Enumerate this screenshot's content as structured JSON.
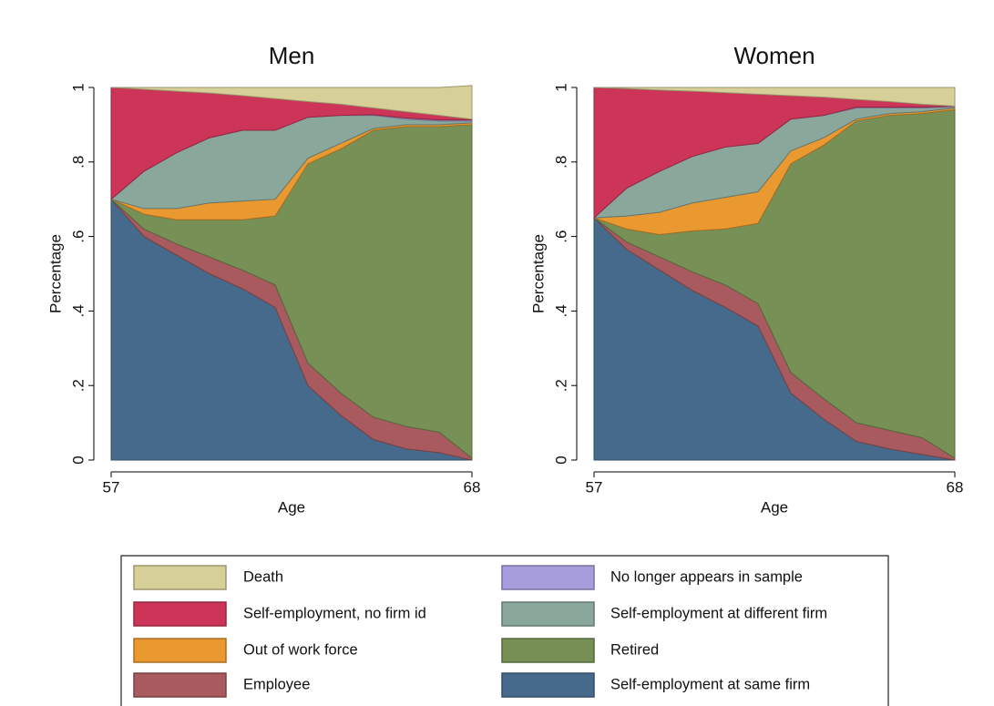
{
  "chart_data": [
    {
      "type": "stacked_area",
      "title": "Men",
      "x_label": "Age",
      "y_label": "Percentage",
      "x": [
        57,
        58,
        59,
        60,
        61,
        62,
        63,
        64,
        65,
        66,
        67,
        68
      ],
      "xlim": [
        57,
        68
      ],
      "xticks": [
        57,
        68
      ],
      "ylim": [
        0,
        1
      ],
      "yticks": [
        0,
        {
          "value": 0.2,
          "label": ".2"
        },
        {
          "value": 0.4,
          "label": ".4"
        },
        {
          "value": 0.6,
          "label": ".6"
        },
        {
          "value": 0.8,
          "label": ".8"
        },
        1
      ],
      "grid": true,
      "series": [
        {
          "name": "Self-employment at same firm",
          "color": "#456a8c",
          "values": [
            0.7,
            0.6,
            0.55,
            0.5,
            0.46,
            0.41,
            0.2,
            0.12,
            0.055,
            0.03,
            0.02,
            0.0
          ]
        },
        {
          "name": "Employee",
          "color": "#a85a5e",
          "values": [
            0,
            0.02,
            0.03,
            0.045,
            0.05,
            0.06,
            0.06,
            0.06,
            0.06,
            0.06,
            0.055,
            0.005
          ]
        },
        {
          "name": "Retired",
          "color": "#769055",
          "values": [
            0,
            0.04,
            0.065,
            0.1,
            0.135,
            0.185,
            0.535,
            0.655,
            0.77,
            0.805,
            0.82,
            0.895
          ]
        },
        {
          "name": "Out of work force",
          "color": "#e9992f",
          "values": [
            0,
            0.015,
            0.03,
            0.045,
            0.05,
            0.045,
            0.015,
            0.015,
            0.005,
            0.005,
            0.005,
            0.005
          ]
        },
        {
          "name": "Self-employment at different firm",
          "color": "#8aa79b",
          "values": [
            0,
            0.1,
            0.15,
            0.175,
            0.19,
            0.185,
            0.11,
            0.075,
            0.035,
            0.015,
            0.01,
            0.005
          ]
        },
        {
          "name": "No longer appears in sample",
          "color": "#a89ddc",
          "values": [
            0,
            0,
            0,
            0,
            0,
            0,
            0,
            0,
            0.002,
            0.003,
            0.003,
            0.003
          ]
        },
        {
          "name": "Self-employment, no firm id",
          "color": "#cc3557",
          "values": [
            0.3,
            0.22,
            0.165,
            0.12,
            0.093,
            0.085,
            0.042,
            0.03,
            0.018,
            0.017,
            0.012,
            0.002
          ]
        },
        {
          "name": "Death",
          "color": "#d7cf98",
          "values": [
            0,
            0.005,
            0.01,
            0.015,
            0.022,
            0.03,
            0.038,
            0.045,
            0.055,
            0.065,
            0.075,
            0.09
          ]
        }
      ]
    },
    {
      "type": "stacked_area",
      "title": "Women",
      "x_label": "Age",
      "y_label": "Percentage",
      "x": [
        57,
        58,
        59,
        60,
        61,
        62,
        63,
        64,
        65,
        66,
        67,
        68
      ],
      "xlim": [
        57,
        68
      ],
      "xticks": [
        57,
        68
      ],
      "ylim": [
        0,
        1
      ],
      "yticks": [
        0,
        {
          "value": 0.2,
          "label": ".2"
        },
        {
          "value": 0.4,
          "label": ".4"
        },
        {
          "value": 0.6,
          "label": ".6"
        },
        {
          "value": 0.8,
          "label": ".8"
        },
        1
      ],
      "grid": true,
      "series": [
        {
          "name": "Self-employment at same firm",
          "color": "#456a8c",
          "values": [
            0.65,
            0.565,
            0.51,
            0.455,
            0.41,
            0.36,
            0.18,
            0.11,
            0.05,
            0.03,
            0.015,
            0.0
          ]
        },
        {
          "name": "Employee",
          "color": "#a85a5e",
          "values": [
            0,
            0.02,
            0.035,
            0.05,
            0.06,
            0.06,
            0.055,
            0.055,
            0.05,
            0.05,
            0.045,
            0.005
          ]
        },
        {
          "name": "Retired",
          "color": "#769055",
          "values": [
            0,
            0.035,
            0.06,
            0.11,
            0.15,
            0.215,
            0.56,
            0.68,
            0.81,
            0.845,
            0.87,
            0.935
          ]
        },
        {
          "name": "Out of work force",
          "color": "#e9992f",
          "values": [
            0,
            0.035,
            0.06,
            0.075,
            0.085,
            0.085,
            0.035,
            0.02,
            0.005,
            0.005,
            0.005,
            0.005
          ]
        },
        {
          "name": "Self-employment at different firm",
          "color": "#8aa79b",
          "values": [
            0,
            0.075,
            0.11,
            0.125,
            0.135,
            0.13,
            0.085,
            0.06,
            0.03,
            0.015,
            0.01,
            0.003
          ]
        },
        {
          "name": "No longer appears in sample",
          "color": "#a89ddc",
          "values": [
            0,
            0,
            0,
            0,
            0,
            0,
            0,
            0,
            0.002,
            0.002,
            0.002,
            0.002
          ]
        },
        {
          "name": "Self-employment, no firm id",
          "color": "#cc3557",
          "values": [
            0.35,
            0.267,
            0.218,
            0.175,
            0.146,
            0.132,
            0.063,
            0.049,
            0.021,
            0.015,
            0.008,
            0.0
          ]
        },
        {
          "name": "Death",
          "color": "#d7cf98",
          "values": [
            0,
            0.003,
            0.007,
            0.01,
            0.014,
            0.018,
            0.022,
            0.026,
            0.032,
            0.038,
            0.045,
            0.05
          ]
        }
      ]
    }
  ]
}
